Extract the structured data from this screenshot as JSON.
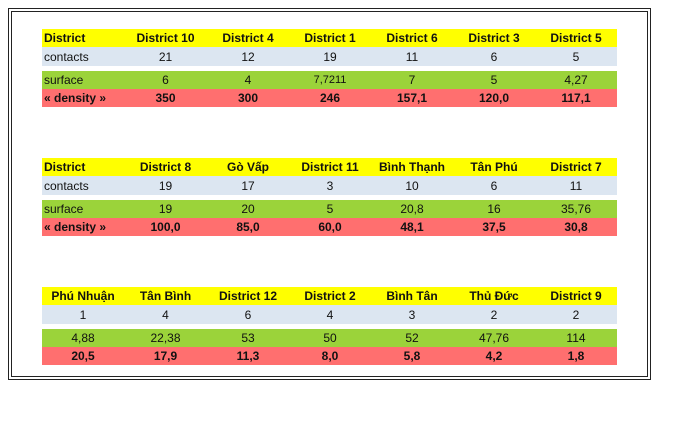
{
  "tables": [
    {
      "header": [
        "District",
        "District 10",
        "District 4",
        "District 1",
        "District 6",
        "District 3",
        "District 5"
      ],
      "contacts_label": "contacts",
      "contacts": [
        "21",
        "12",
        "19",
        "11",
        "6",
        "5"
      ],
      "surface_label": "surface",
      "surface": [
        "6",
        "4",
        "7,7211",
        "7",
        "5",
        "4,27"
      ],
      "density_label": "« density »",
      "density": [
        "350",
        "300",
        "246",
        "157,1",
        "120,0",
        "117,1"
      ]
    },
    {
      "header": [
        "District",
        "District 8",
        "Gò Vấp",
        "District 11",
        "Bình Thạnh",
        "Tân Phú",
        "District 7"
      ],
      "contacts_label": "contacts",
      "contacts": [
        "19",
        "17",
        "3",
        "10",
        "6",
        "11"
      ],
      "surface_label": "surface",
      "surface": [
        "19",
        "20",
        "5",
        "20,8",
        "16",
        "35,76"
      ],
      "density_label": "« density »",
      "density": [
        "100,0",
        "85,0",
        "60,0",
        "48,1",
        "37,5",
        "30,8"
      ]
    },
    {
      "header": [
        "Phú Nhuận",
        "Tân Bình",
        "District 12",
        "District 2",
        "Bình Tân",
        "Thủ Đức",
        "District 9"
      ],
      "contacts": [
        "1",
        "4",
        "6",
        "4",
        "3",
        "2",
        "2"
      ],
      "surface": [
        "4,88",
        "22,38",
        "53",
        "50",
        "52",
        "47,76",
        "114"
      ],
      "density": [
        "20,5",
        "17,9",
        "11,3",
        "8,0",
        "5,8",
        "4,2",
        "1,8"
      ]
    }
  ]
}
